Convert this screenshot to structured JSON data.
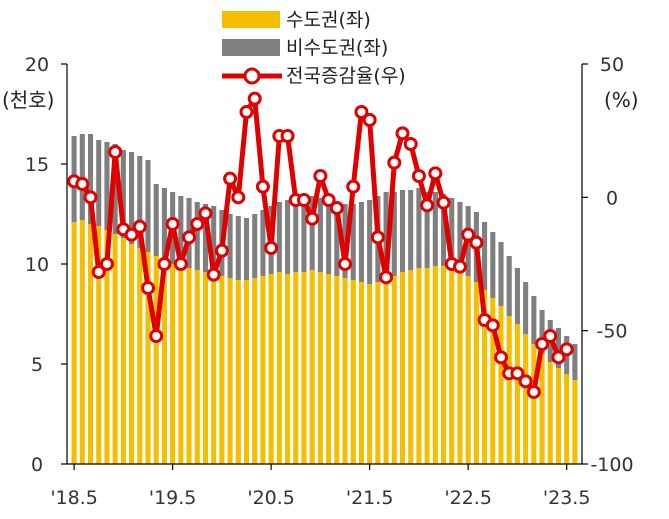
{
  "chart_data": {
    "type": "bar",
    "stacked": true,
    "legend": [
      {
        "label": "수도권(좌)",
        "color": "#F5BE00",
        "kind": "bar"
      },
      {
        "label": "비수도권(좌)",
        "color": "#7F7F7F",
        "kind": "bar"
      },
      {
        "label": "전국증감율(우)",
        "color": "#E00000",
        "kind": "line"
      }
    ],
    "y_left": {
      "unit_label": "(천호)",
      "ticks": [
        "0",
        "5",
        "10",
        "15",
        "20"
      ],
      "min": 0,
      "max": 20
    },
    "y_right": {
      "unit_label": "(%)",
      "ticks": [
        "-100",
        "-50",
        "0",
        "50"
      ],
      "min": -100,
      "max": 50
    },
    "x_ticks": [
      "'18.5",
      "'19.5",
      "'20.5",
      "'21.5",
      "'22.5",
      "'23.5"
    ],
    "grid": false,
    "legend_position": "top",
    "series": [
      {
        "name": "수도권(좌)",
        "axis": "left",
        "values": [
          12.1,
          12.2,
          12.0,
          11.9,
          11.7,
          11.5,
          11.3,
          11.0,
          10.8,
          10.6,
          10.4,
          10.2,
          10.0,
          9.9,
          9.8,
          9.7,
          9.6,
          9.5,
          9.4,
          9.3,
          9.2,
          9.2,
          9.3,
          9.4,
          9.5,
          9.6,
          9.5,
          9.6,
          9.6,
          9.7,
          9.6,
          9.5,
          9.4,
          9.3,
          9.2,
          9.1,
          9.0,
          9.1,
          9.3,
          9.4,
          9.6,
          9.7,
          9.8,
          9.8,
          9.9,
          9.9,
          9.7,
          9.6,
          9.4,
          9.1,
          8.7,
          8.3,
          7.9,
          7.4,
          7.0,
          6.5,
          6.0,
          5.5,
          5.1,
          4.8,
          4.5,
          4.2
        ]
      },
      {
        "name": "비수도권(좌)",
        "axis": "left",
        "values": [
          4.3,
          4.3,
          4.5,
          4.3,
          4.4,
          4.5,
          4.4,
          4.6,
          4.6,
          4.6,
          3.6,
          3.6,
          3.6,
          3.5,
          3.5,
          3.4,
          3.4,
          3.4,
          3.3,
          3.2,
          3.2,
          3.1,
          3.2,
          3.3,
          3.4,
          3.5,
          3.7,
          3.7,
          3.7,
          3.7,
          3.7,
          3.7,
          3.7,
          3.7,
          3.8,
          4.0,
          4.2,
          4.3,
          4.3,
          4.2,
          4.1,
          4.0,
          4.0,
          3.8,
          3.7,
          3.6,
          3.6,
          3.5,
          3.5,
          3.5,
          3.4,
          3.3,
          3.2,
          3.0,
          2.8,
          2.6,
          2.4,
          2.2,
          2.1,
          2.0,
          1.9,
          1.8
        ]
      },
      {
        "name": "전국증감율(우)",
        "axis": "right",
        "x_index": [
          0,
          1,
          2,
          3,
          4,
          5,
          6,
          7,
          8,
          9,
          10,
          11,
          12,
          13,
          14,
          15,
          16,
          17,
          18,
          19,
          20,
          21,
          22,
          23,
          24,
          25,
          26,
          27,
          28,
          29,
          30,
          31,
          32,
          33,
          34,
          35,
          36,
          37,
          38,
          39,
          40,
          41,
          42,
          43,
          44,
          45,
          46,
          47,
          48,
          49,
          50,
          51,
          52,
          53,
          54,
          55,
          56,
          57,
          58,
          59,
          60
        ],
        "values": [
          6,
          5,
          0,
          -28,
          -25,
          17,
          -12,
          -14,
          -11,
          -34,
          -52,
          -25,
          -10,
          -25,
          -15,
          -10,
          -6,
          -29,
          -20,
          7,
          0,
          32,
          37,
          4,
          -19,
          23,
          23,
          -1,
          -1,
          -8,
          8,
          -1,
          -4,
          -25,
          4,
          32,
          29,
          -15,
          -30,
          13,
          24,
          20,
          8,
          -3,
          9,
          -2,
          -25,
          -26,
          -14,
          -17,
          -46,
          -48,
          -60,
          -66,
          -66,
          -69,
          -73,
          -55,
          -52,
          -60,
          -57
        ]
      }
    ]
  }
}
